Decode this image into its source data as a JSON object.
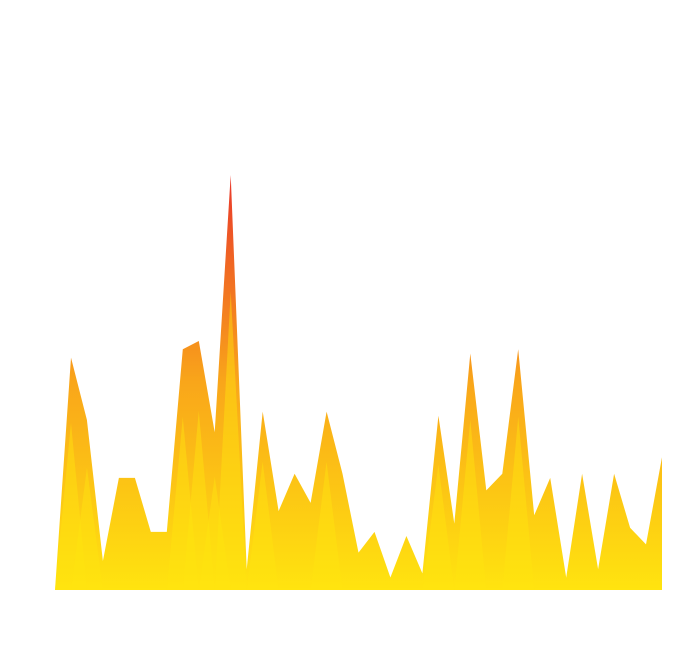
{
  "chart_data": {
    "type": "area",
    "title": "",
    "xlabel": "",
    "ylabel": "",
    "grid": false,
    "legend": "none",
    "ylim": [
      0,
      100
    ],
    "colors": {
      "low": "#FFE40F",
      "mid": "#F9A61A",
      "high": "#E9372A"
    },
    "series": [
      {
        "values": [
          0,
          56,
          41,
          7,
          27,
          27,
          14,
          14,
          58,
          60,
          38,
          100,
          5,
          43,
          19,
          28,
          21,
          43,
          28,
          9,
          14,
          3,
          13,
          4,
          42,
          16,
          57,
          24,
          28,
          58,
          18,
          27,
          3,
          28,
          5,
          28,
          15,
          11,
          32
        ]
      }
    ]
  }
}
